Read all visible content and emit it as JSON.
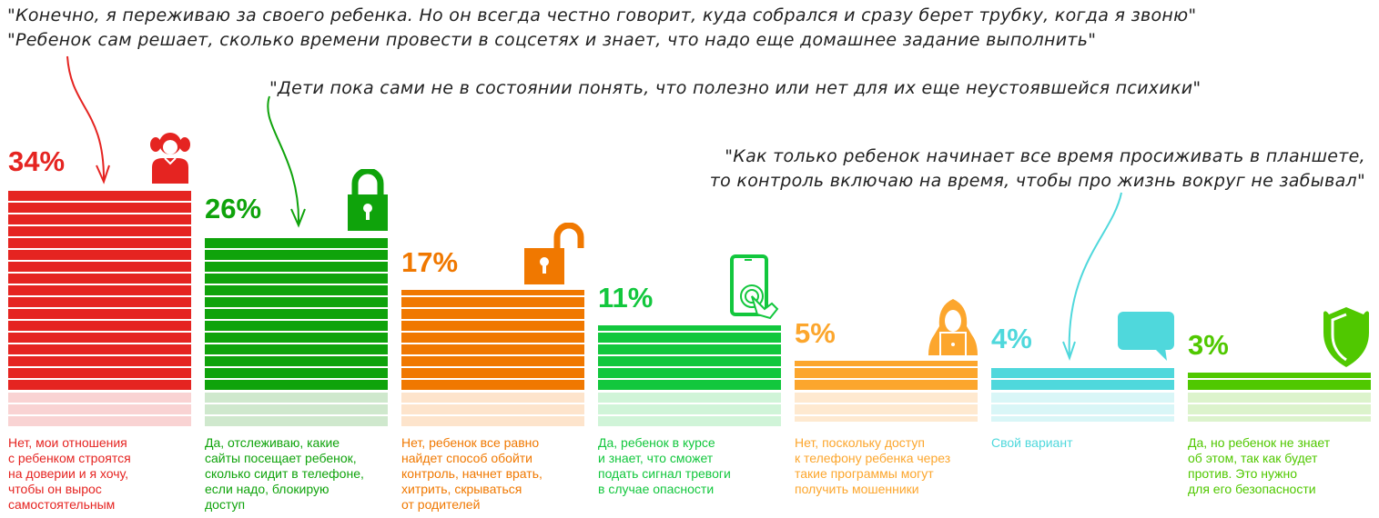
{
  "quotes": [
    {
      "lines": [
        "\"Конечно, я переживаю за своего ребенка. Но он всегда честно говорит, куда собрался и сразу берет трубку, когда я звоню\"",
        "\"Ребенок сам решает, сколько времени провести в соцсетях и знает, что надо еще домашнее задание выполнить\""
      ]
    },
    {
      "lines": [
        "\"Дети пока сами не в состоянии понять, что полезно или нет для их еще неустоявшейся психики\""
      ]
    },
    {
      "lines": [
        "\"Как только ребенок начинает все время просиживать в планшете,",
        "то контроль включаю на время, чтобы про жизнь вокруг не забывал\""
      ]
    }
  ],
  "chart_data": {
    "type": "bar",
    "unit": "%",
    "categories": [
      "Нет, мои отношения с ребенком строятся на доверии и я хочу, чтобы он вырос самостоятельным",
      "Да, отслеживаю, какие сайты посещает ребенок, сколько сидит в телефоне, если надо, блокирую доступ",
      "Нет, ребенок все равно найдет способ обойти контроль, начнет врать, хитрить, скрываться от родителей",
      "Да, ребенок в курсе и знает, что сможет подать сигнал тревоги в случае опасности",
      "Нет, поскольку доступ к телефону ребенка через такие программы могут получить мошенники",
      "Свой вариант",
      "Да, но ребенок не знает об этом, так как будет против. Это нужно для его безопасности"
    ],
    "values": [
      34,
      26,
      17,
      11,
      5,
      4,
      3
    ],
    "labels": [
      "34%",
      "26%",
      "17%",
      "11%",
      "5%",
      "4%",
      "3%"
    ],
    "caption_lines": [
      [
        "Нет, мои отношения",
        "с ребенком строятся",
        "на доверии и я хочу,",
        "чтобы он вырос",
        "самостоятельным"
      ],
      [
        "Да, отслеживаю, какие",
        "сайты посещает ребенок,",
        "сколько сидит в телефоне,",
        "если надо, блокирую",
        "доступ"
      ],
      [
        "Нет, ребенок все равно",
        "найдет способ обойти",
        "контроль, начнет врать,",
        "хитрить, скрываться",
        "от родителей"
      ],
      [
        "Да, ребенок в курсе",
        "и знает, что сможет",
        "подать сигнал тревоги",
        "в случае опасности"
      ],
      [
        "Нет, поскольку доступ",
        "к телефону ребенка через",
        "такие программы могут",
        "получить мошенники"
      ],
      [
        "Свой вариант"
      ],
      [
        "Да, но ребенок не знает",
        "об этом, так как будет",
        "против. Это нужно",
        "для его безопасности"
      ]
    ],
    "colors": [
      "#e52421",
      "#0fa30b",
      "#f07800",
      "#12c73d",
      "#fca62d",
      "#4fd8dc",
      "#50c800"
    ],
    "pale_colors": [
      "#f9d3d3",
      "#cfe8cd",
      "#fde4cc",
      "#d0f4d8",
      "#fee9d0",
      "#d9f6f7",
      "#dcf3cc"
    ],
    "caption_colors": [
      "#e52421",
      "#0fa30b",
      "#f07800",
      "#12c73d",
      "#fca62d",
      "#4fd8dc",
      "#50c800"
    ],
    "icons": [
      "girl-icon",
      "lock-closed-icon",
      "lock-open-icon",
      "phone-touch-icon",
      "hacker-laptop-icon",
      "speech-bubble-icon",
      "shield-icon"
    ],
    "legend": "none",
    "grid": false
  }
}
